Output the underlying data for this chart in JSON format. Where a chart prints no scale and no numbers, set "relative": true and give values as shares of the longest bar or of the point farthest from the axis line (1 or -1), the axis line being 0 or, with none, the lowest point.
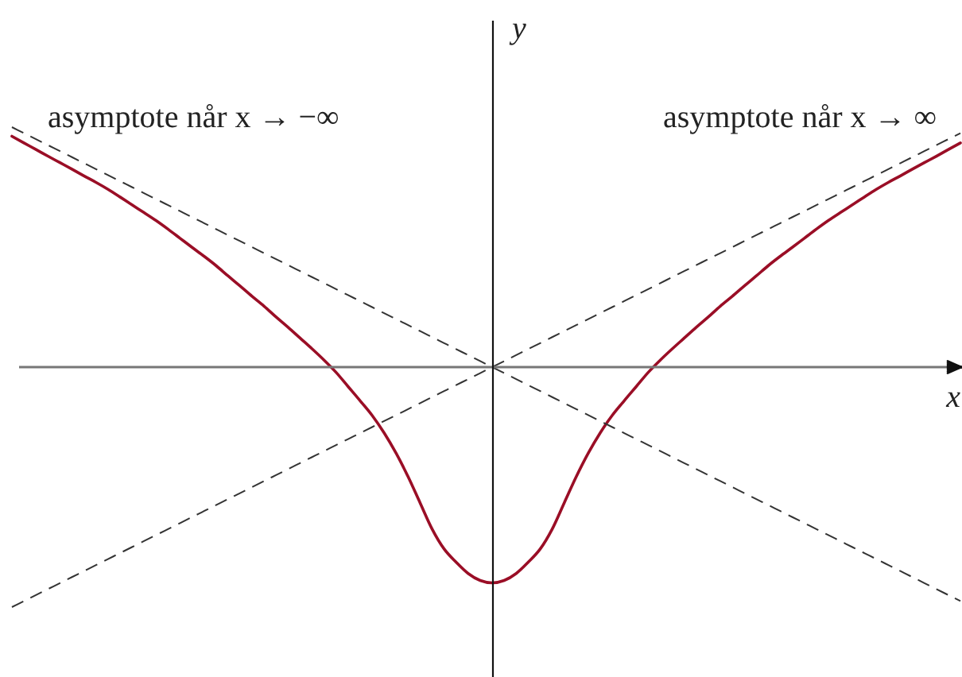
{
  "chart_data": {
    "type": "line",
    "relative": true,
    "xlabel": "x",
    "ylabel": "y",
    "annotations": [
      "asymptote når x → −∞",
      "asymptote når x → ∞"
    ],
    "categories": [
      null,
      null,
      null,
      null,
      null,
      null,
      null,
      null,
      null,
      null,
      null,
      null,
      null,
      null,
      null,
      null,
      null,
      null,
      null,
      null,
      null,
      null,
      null,
      null,
      null,
      null,
      null,
      null,
      null,
      null,
      null,
      null,
      null,
      null,
      null,
      null,
      null,
      null,
      null,
      null,
      null,
      null,
      null,
      null,
      null,
      null,
      null,
      null,
      null,
      null,
      null,
      null,
      null,
      null,
      null,
      null,
      null,
      null,
      null,
      null,
      null,
      null,
      null,
      null,
      null,
      null,
      null,
      null,
      null,
      null,
      null,
      null,
      null,
      null,
      null,
      null,
      null,
      null,
      null,
      null
    ],
    "series": [
      {
        "color": "#9a0e26",
        "line_style": "solid",
        "values": [
          0.962,
          0.934,
          0.907,
          0.879,
          0.852,
          0.825,
          0.797,
          0.77,
          0.741,
          0.709,
          0.676,
          0.644,
          0.611,
          0.575,
          0.537,
          0.499,
          0.462,
          0.423,
          0.38,
          0.338,
          0.295,
          0.254,
          0.209,
          0.166,
          0.121,
          0.076,
          0.029,
          -0.022,
          -0.081,
          -0.14,
          -0.201,
          -0.274,
          -0.359,
          -0.457,
          -0.566,
          -0.675,
          -0.758,
          -0.813,
          -0.86,
          -0.889,
          -0.899,
          -0.889,
          -0.86,
          -0.813,
          -0.758,
          -0.675,
          -0.566,
          -0.457,
          -0.359,
          -0.274,
          -0.201,
          -0.14,
          -0.081,
          -0.022,
          0.029,
          0.076,
          0.121,
          0.166,
          0.209,
          0.254,
          0.295,
          0.338,
          0.38,
          0.423,
          0.462,
          0.499,
          0.537,
          0.575,
          0.611,
          0.644,
          0.676,
          0.709,
          0.741,
          0.77,
          0.797,
          0.825,
          0.852,
          0.879,
          0.907,
          0.934
        ]
      },
      {
        "color": "#333333",
        "line_style": "dashed",
        "values": [
          -1,
          -0.975,
          -0.95,
          -0.925,
          -0.9,
          -0.875,
          -0.85,
          -0.825,
          -0.8,
          -0.775,
          -0.75,
          -0.725,
          -0.7,
          -0.675,
          -0.65,
          -0.625,
          -0.6,
          -0.575,
          -0.55,
          -0.525,
          -0.5,
          -0.475,
          -0.45,
          -0.425,
          -0.4,
          -0.375,
          -0.35,
          -0.325,
          -0.3,
          -0.275,
          -0.25,
          -0.225,
          -0.2,
          -0.175,
          -0.15,
          -0.125,
          -0.1,
          -0.075,
          -0.05,
          -0.025,
          0,
          0.025,
          0.05,
          0.075,
          0.1,
          0.125,
          0.15,
          0.175,
          0.2,
          0.225,
          0.25,
          0.275,
          0.3,
          0.325,
          0.35,
          0.375,
          0.4,
          0.425,
          0.45,
          0.475,
          0.5,
          0.525,
          0.55,
          0.575,
          0.6,
          0.625,
          0.65,
          0.675,
          0.7,
          0.725,
          0.75,
          0.775,
          0.8,
          0.825,
          0.85,
          0.875,
          0.9,
          0.925,
          0.95,
          0.975
        ]
      },
      {
        "color": "#333333",
        "line_style": "dashed",
        "values": [
          1,
          0.975,
          0.95,
          0.925,
          0.9,
          0.875,
          0.85,
          0.825,
          0.8,
          0.775,
          0.75,
          0.725,
          0.7,
          0.675,
          0.65,
          0.625,
          0.6,
          0.575,
          0.55,
          0.525,
          0.5,
          0.475,
          0.45,
          0.425,
          0.4,
          0.375,
          0.35,
          0.325,
          0.3,
          0.275,
          0.25,
          0.225,
          0.2,
          0.175,
          0.15,
          0.125,
          0.1,
          0.075,
          0.05,
          0.025,
          0,
          -0.025,
          -0.05,
          -0.075,
          -0.1,
          -0.125,
          -0.15,
          -0.175,
          -0.2,
          -0.225,
          -0.25,
          -0.275,
          -0.3,
          -0.325,
          -0.35,
          -0.375,
          -0.4,
          -0.425,
          -0.45,
          -0.475,
          -0.5,
          -0.525,
          -0.55,
          -0.575,
          -0.6,
          -0.625,
          -0.65,
          -0.675,
          -0.7,
          -0.725,
          -0.75,
          -0.775,
          -0.8,
          -0.825,
          -0.85,
          -0.875,
          -0.9,
          -0.925,
          -0.95,
          -0.975
        ]
      }
    ]
  }
}
